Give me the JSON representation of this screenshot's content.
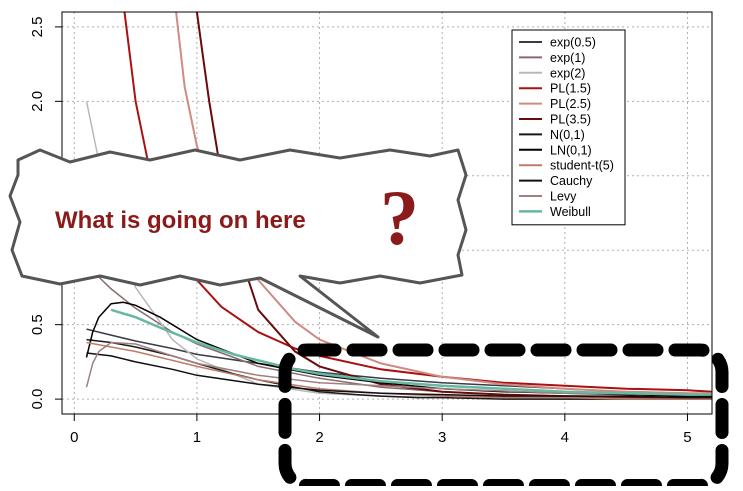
{
  "callout": {
    "text": "What is going on here",
    "mark": "?",
    "text_color": "#8b1a1a"
  },
  "chart_data": {
    "type": "line",
    "title": "",
    "xlabel": "",
    "ylabel": "",
    "xlim": [
      -0.1,
      5.2
    ],
    "ylim": [
      -0.1,
      2.6
    ],
    "x_ticks": [
      0,
      1,
      2,
      3,
      4,
      5
    ],
    "y_ticks": [
      0.0,
      0.5,
      1.0,
      1.5,
      2.0,
      2.5
    ],
    "x_tick_labels": [
      "0",
      "1",
      "2",
      "3",
      "4",
      "5"
    ],
    "y_tick_labels": [
      "0.0",
      "0.5",
      "1.0",
      "1.5",
      "2.0",
      "2.5"
    ],
    "grid": true,
    "legend_position": "top-right",
    "highlight_box": {
      "x": [
        1.8,
        5.2
      ],
      "y": [
        -0.58,
        0.33
      ]
    },
    "series": [
      {
        "name": "exp(0.5)",
        "color": "#3a3a48",
        "width": 1.5,
        "x": [
          0.1,
          0.2,
          0.3,
          0.5,
          0.8,
          1.0,
          1.5,
          2.0,
          2.5,
          3.0,
          3.5,
          4.0,
          4.5,
          5.0,
          5.2
        ],
        "y": [
          0.47,
          0.45,
          0.43,
          0.39,
          0.34,
          0.3,
          0.24,
          0.18,
          0.14,
          0.11,
          0.09,
          0.07,
          0.05,
          0.04,
          0.04
        ]
      },
      {
        "name": "exp(1)",
        "color": "#8a6a6a",
        "width": 1.5,
        "x": [
          0.1,
          0.2,
          0.3,
          0.5,
          0.8,
          1.0,
          1.5,
          2.0,
          2.5,
          3.0,
          3.5,
          4.0,
          4.5,
          5.0,
          5.2
        ],
        "y": [
          0.9,
          0.82,
          0.74,
          0.61,
          0.45,
          0.37,
          0.22,
          0.14,
          0.08,
          0.05,
          0.03,
          0.02,
          0.01,
          0.01,
          0.01
        ]
      },
      {
        "name": "exp(2)",
        "color": "#b8b8b8",
        "width": 1.5,
        "x": [
          0.1,
          0.15,
          0.2,
          0.3,
          0.5,
          0.8,
          1.0,
          1.5,
          2.0,
          2.5,
          3.0,
          4.0,
          5.0,
          5.2
        ],
        "y": [
          2.0,
          1.8,
          1.6,
          1.2,
          0.75,
          0.4,
          0.27,
          0.1,
          0.04,
          0.02,
          0.01,
          0.0,
          0.0,
          0.0
        ]
      },
      {
        "name": "PL(1.5)",
        "color": "#aa1111",
        "width": 2,
        "x": [
          0.41,
          0.5,
          0.6,
          0.7,
          0.8,
          1.0,
          1.2,
          1.5,
          1.8,
          2.0,
          2.5,
          3.0,
          3.5,
          4.0,
          4.5,
          5.0,
          5.2
        ],
        "y": [
          2.6,
          2.0,
          1.6,
          1.3,
          1.1,
          0.8,
          0.62,
          0.45,
          0.34,
          0.29,
          0.2,
          0.15,
          0.11,
          0.09,
          0.07,
          0.06,
          0.05
        ]
      },
      {
        "name": "PL(2.5)",
        "color": "#d08a82",
        "width": 2,
        "x": [
          0.83,
          0.9,
          1.0,
          1.2,
          1.5,
          1.8,
          2.0,
          2.5,
          3.0,
          3.5,
          4.0,
          4.5,
          5.0,
          5.2
        ],
        "y": [
          2.6,
          2.1,
          1.7,
          1.2,
          0.8,
          0.52,
          0.4,
          0.24,
          0.15,
          0.1,
          0.07,
          0.05,
          0.04,
          0.04
        ]
      },
      {
        "name": "PL(3.5)",
        "color": "#6a0a0a",
        "width": 2,
        "x": [
          1.0,
          1.05,
          1.1,
          1.2,
          1.3,
          1.5,
          1.8,
          2.0,
          2.5,
          3.0,
          3.5,
          4.0,
          5.0,
          5.2
        ],
        "y": [
          2.6,
          2.3,
          2.0,
          1.5,
          1.1,
          0.6,
          0.32,
          0.22,
          0.1,
          0.05,
          0.03,
          0.02,
          0.01,
          0.01
        ]
      },
      {
        "name": "N(0,1)",
        "color": "#1a1a1a",
        "width": 1.5,
        "x": [
          0.1,
          0.3,
          0.5,
          0.8,
          1.0,
          1.3,
          1.5,
          1.8,
          2.0,
          2.3,
          2.5,
          2.8,
          3.0,
          3.5,
          4.0,
          4.5,
          5.0,
          5.2
        ],
        "y": [
          0.4,
          0.38,
          0.35,
          0.29,
          0.24,
          0.17,
          0.13,
          0.08,
          0.05,
          0.03,
          0.02,
          0.01,
          0.01,
          0.0,
          0.0,
          0.0,
          0.0,
          0.0
        ]
      },
      {
        "name": "LN(0,1)",
        "color": "#000000",
        "width": 1.5,
        "x": [
          0.1,
          0.15,
          0.2,
          0.3,
          0.4,
          0.5,
          0.7,
          1.0,
          1.5,
          2.0,
          2.5,
          3.0,
          3.5,
          4.0,
          4.5,
          5.0,
          5.2
        ],
        "y": [
          0.28,
          0.45,
          0.55,
          0.64,
          0.65,
          0.63,
          0.55,
          0.4,
          0.24,
          0.16,
          0.11,
          0.07,
          0.05,
          0.04,
          0.03,
          0.02,
          0.02
        ]
      },
      {
        "name": "student-t(5)",
        "color": "#c07a6a",
        "width": 1.5,
        "x": [
          0.1,
          0.3,
          0.5,
          0.8,
          1.0,
          1.5,
          2.0,
          2.5,
          3.0,
          3.5,
          4.0,
          4.5,
          5.0,
          5.2
        ],
        "y": [
          0.38,
          0.35,
          0.32,
          0.26,
          0.22,
          0.13,
          0.07,
          0.04,
          0.02,
          0.01,
          0.01,
          0.0,
          0.0,
          0.0
        ]
      },
      {
        "name": "Cauchy",
        "color": "#101010",
        "width": 1.5,
        "x": [
          0.1,
          0.3,
          0.5,
          0.8,
          1.0,
          1.5,
          2.0,
          2.5,
          3.0,
          3.5,
          4.0,
          4.5,
          5.0,
          5.2
        ],
        "y": [
          0.31,
          0.29,
          0.25,
          0.2,
          0.16,
          0.1,
          0.06,
          0.04,
          0.03,
          0.02,
          0.02,
          0.02,
          0.01,
          0.01
        ]
      },
      {
        "name": "Levy",
        "color": "#a08080",
        "width": 1.5,
        "x": [
          0.1,
          0.15,
          0.2,
          0.3,
          0.5,
          0.8,
          1.0,
          1.5,
          2.0,
          3.0,
          4.0,
          5.0,
          5.2
        ],
        "y": [
          0.08,
          0.24,
          0.32,
          0.38,
          0.37,
          0.29,
          0.24,
          0.16,
          0.11,
          0.07,
          0.04,
          0.03,
          0.03
        ]
      },
      {
        "name": "Weibull",
        "color": "#66b8a0",
        "width": 2.5,
        "x": [
          0.3,
          0.5,
          0.7,
          1.0,
          1.3,
          1.5,
          1.8,
          2.0,
          2.5,
          3.0,
          3.5,
          4.0,
          4.5,
          5.0,
          5.2
        ],
        "y": [
          0.6,
          0.55,
          0.48,
          0.38,
          0.3,
          0.26,
          0.2,
          0.17,
          0.12,
          0.09,
          0.07,
          0.05,
          0.04,
          0.03,
          0.03
        ]
      }
    ]
  }
}
